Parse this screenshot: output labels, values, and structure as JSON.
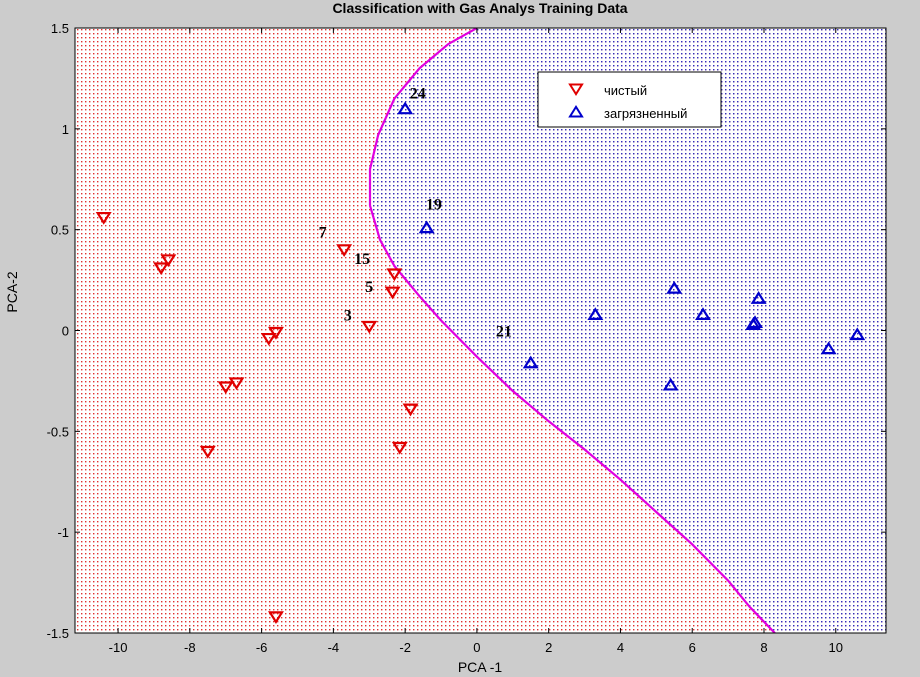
{
  "chart_data": {
    "type": "scatter",
    "title": "Classification with Gas Analys Training Data",
    "xlabel": "PCA -1",
    "ylabel": "PCA-2",
    "xlim": [
      -11.2,
      11.4
    ],
    "ylim": [
      -1.5,
      1.5
    ],
    "xticks": [
      -10,
      -8,
      -6,
      -4,
      -2,
      0,
      2,
      4,
      6,
      8,
      10
    ],
    "yticks": [
      -1.5,
      -1,
      -0.5,
      0,
      0.5,
      1,
      1.5
    ],
    "legend": {
      "position": "top-right"
    },
    "colors": {
      "clean": "#e00000",
      "polluted": "#0000cc",
      "boundary": "#e000e0",
      "region_clean": "#e03030",
      "region_polluted": "#3030c0"
    },
    "series": [
      {
        "name": "чистый",
        "marker": "triangle-down",
        "points": [
          [
            -10.4,
            0.56
          ],
          [
            -8.8,
            0.31
          ],
          [
            -8.6,
            0.35
          ],
          [
            -7.5,
            -0.6
          ],
          [
            -7.0,
            -0.28
          ],
          [
            -6.7,
            -0.26
          ],
          [
            -5.8,
            -0.04
          ],
          [
            -5.6,
            -0.01
          ],
          [
            -5.6,
            -1.42
          ],
          [
            -3.7,
            0.4
          ],
          [
            -3.0,
            0.02
          ],
          [
            -2.35,
            0.19
          ],
          [
            -2.3,
            0.28
          ],
          [
            -2.15,
            -0.58
          ],
          [
            -1.85,
            -0.39
          ]
        ]
      },
      {
        "name": "загрязненный",
        "marker": "triangle-up",
        "points": [
          [
            -2.0,
            1.1
          ],
          [
            -1.4,
            0.51
          ],
          [
            1.5,
            -0.16
          ],
          [
            3.3,
            0.08
          ],
          [
            5.4,
            -0.27
          ],
          [
            5.5,
            0.21
          ],
          [
            6.3,
            0.08
          ],
          [
            7.7,
            0.03
          ],
          [
            7.75,
            0.04
          ],
          [
            7.85,
            0.16
          ],
          [
            9.8,
            -0.09
          ],
          [
            10.6,
            -0.02
          ]
        ]
      }
    ],
    "annotations": [
      {
        "text": "24",
        "x": -1.65,
        "y": 1.15
      },
      {
        "text": "19",
        "x": -1.2,
        "y": 0.6
      },
      {
        "text": "7",
        "x": -4.3,
        "y": 0.46
      },
      {
        "text": "15",
        "x": -3.2,
        "y": 0.33
      },
      {
        "text": "5",
        "x": -3.0,
        "y": 0.19
      },
      {
        "text": "3",
        "x": -3.6,
        "y": 0.05
      },
      {
        "text": "21",
        "x": 0.75,
        "y": -0.03
      }
    ],
    "boundary": [
      [
        0.0,
        1.5
      ],
      [
        -0.8,
        1.42
      ],
      [
        -1.6,
        1.3
      ],
      [
        -2.3,
        1.15
      ],
      [
        -2.75,
        0.97
      ],
      [
        -2.98,
        0.8
      ],
      [
        -2.98,
        0.62
      ],
      [
        -2.7,
        0.45
      ],
      [
        -2.3,
        0.32
      ],
      [
        -1.6,
        0.17
      ],
      [
        -1.0,
        0.05
      ],
      [
        0.0,
        -0.13
      ],
      [
        1.0,
        -0.3
      ],
      [
        2.0,
        -0.45
      ],
      [
        3.0,
        -0.59
      ],
      [
        4.0,
        -0.74
      ],
      [
        5.0,
        -0.9
      ],
      [
        6.0,
        -1.06
      ],
      [
        7.0,
        -1.24
      ],
      [
        7.6,
        -1.37
      ],
      [
        8.3,
        -1.5
      ]
    ]
  }
}
